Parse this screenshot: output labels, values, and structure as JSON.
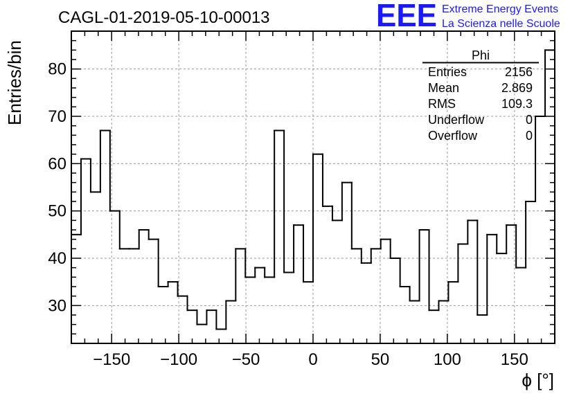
{
  "chart_data": {
    "type": "bar",
    "style": "step-histogram",
    "title": "CAGL-01-2019-05-10-00013",
    "xlabel": "ϕ [°]",
    "ylabel": "Entries/bin",
    "xlim": [
      -180,
      180
    ],
    "ylim": [
      22,
      88
    ],
    "bin_width": 7.2,
    "x_ticks": [
      -150,
      -100,
      -50,
      0,
      50,
      100,
      150
    ],
    "x_tick_labels": [
      "−150",
      "−100",
      "−50",
      "0",
      "50",
      "100",
      "150"
    ],
    "y_ticks": [
      30,
      40,
      50,
      60,
      70,
      80
    ],
    "y_tick_labels": [
      "30",
      "40",
      "50",
      "60",
      "70",
      "80"
    ],
    "grid": true,
    "values": [
      45,
      61,
      54,
      67,
      50,
      42,
      42,
      46,
      44,
      34,
      35,
      32,
      29,
      26,
      29,
      25,
      31,
      42,
      36,
      38,
      36,
      67,
      37,
      47,
      35,
      62,
      51,
      48,
      56,
      42,
      39,
      42,
      44,
      40,
      34,
      31,
      46,
      29,
      31,
      35,
      43,
      48,
      28,
      45,
      41,
      47,
      38,
      52,
      70,
      84
    ],
    "stats_box": {
      "title": "Phi",
      "rows": [
        {
          "label": "Entries",
          "value": "2156"
        },
        {
          "label": "Mean",
          "value": "2.869"
        },
        {
          "label": "RMS",
          "value": "109.3"
        },
        {
          "label": "Underflow",
          "value": "0"
        },
        {
          "label": "Overflow",
          "value": "0"
        }
      ]
    },
    "colors": {
      "line": "#000000",
      "grid": "#999999",
      "logo": "#1a1aff"
    }
  },
  "logo": {
    "letters": "EEE",
    "line1": "Extreme Energy Events",
    "line2": "La Scienza nelle Scuole"
  }
}
